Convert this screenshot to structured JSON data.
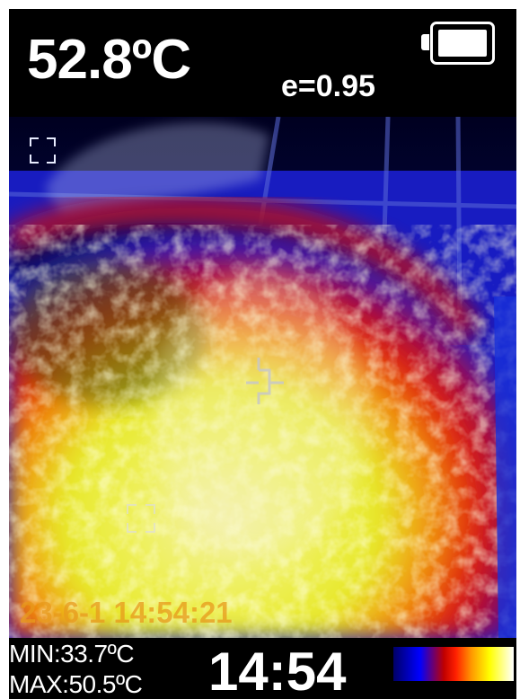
{
  "header": {
    "target_temperature": "52.8ºC",
    "emissivity": "e=0.95"
  },
  "battery": {
    "icon": "battery-full-icon",
    "level": 1.0
  },
  "thermal_view": {
    "timestamp_overlay": "23-6-1 14:54:21",
    "markers": [
      "center-crosshair-icon",
      "min-spot-marker-icon",
      "max-spot-marker-icon"
    ],
    "palette_colors": [
      "#000066",
      "#0000ff",
      "#c00000",
      "#ff2000",
      "#ff9900",
      "#ffff00",
      "#ffffff"
    ]
  },
  "footer": {
    "min_label": "MIN:33.7ºC",
    "max_label": "MAX:50.5ºC",
    "clock": "14:54",
    "palette_icon": "color-palette-scale"
  }
}
